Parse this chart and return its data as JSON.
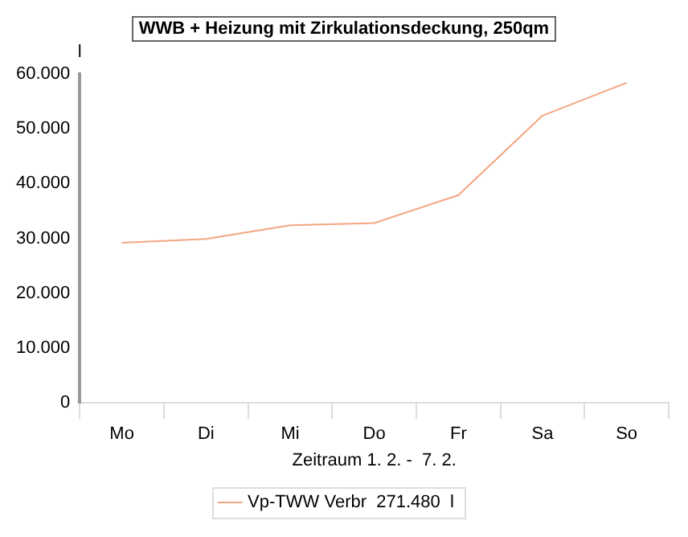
{
  "chart_data": {
    "type": "line",
    "title": "WWB + Heizung mit Zirkulationsdeckung, 250qm",
    "xlabel": "Zeitraum 1. 2. -  7. 2.",
    "ylabel": "l",
    "categories": [
      "Mo",
      "Di",
      "Mi",
      "Do",
      "Fr",
      "Sa",
      "So"
    ],
    "series": [
      {
        "name": "Vp-TWW Verbr  271.480  l",
        "color": "#f4a582",
        "values": [
          29200,
          29900,
          32400,
          32800,
          37900,
          52400,
          58400
        ]
      }
    ],
    "ylim": [
      0,
      60000
    ],
    "yticks": [
      {
        "value": 0,
        "label": "0"
      },
      {
        "value": 10000,
        "label": "10.000"
      },
      {
        "value": 20000,
        "label": "20.000"
      },
      {
        "value": 30000,
        "label": "30.000"
      },
      {
        "value": 40000,
        "label": "40.000"
      },
      {
        "value": 50000,
        "label": "50.000"
      },
      {
        "value": 60000,
        "label": "60.000"
      }
    ],
    "grid": false,
    "legend": "bottom",
    "marker": "none",
    "line_style": "solid"
  }
}
